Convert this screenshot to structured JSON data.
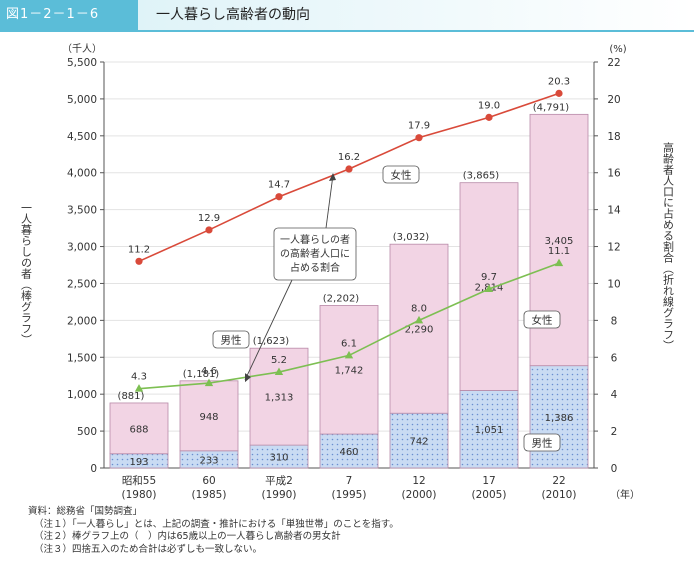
{
  "header": {
    "figure_label": "図1－2－1－6",
    "title": "一人暮らし高齢者の動向"
  },
  "chart_data": {
    "type": "bar",
    "left_unit": "（千人）",
    "right_unit": "(%)",
    "year_unit": "（年）",
    "ylabel_left": "一人暮らしの者（棒グラフ）",
    "ylabel_right": "高齢者人口に占める割合（折れ線グラフ）",
    "ylim_left": [
      0,
      5500
    ],
    "ylim_right": [
      0,
      22
    ],
    "left_ticks": [
      "0",
      "500",
      "1,000",
      "1,500",
      "2,000",
      "2,500",
      "3,000",
      "3,500",
      "4,000",
      "4,500",
      "5,000",
      "5,500"
    ],
    "right_ticks": [
      "0",
      "2",
      "4",
      "6",
      "8",
      "10",
      "12",
      "14",
      "16",
      "18",
      "20",
      "22"
    ],
    "categories": [
      {
        "era": "昭和55",
        "year": "(1980)"
      },
      {
        "era": "60",
        "year": "(1985)"
      },
      {
        "era": "平成2",
        "year": "(1990)"
      },
      {
        "era": "7",
        "year": "(1995)"
      },
      {
        "era": "12",
        "year": "(2000)"
      },
      {
        "era": "17",
        "year": "(2005)"
      },
      {
        "era": "22",
        "year": "(2010)"
      }
    ],
    "bar_series": [
      {
        "name": "男性",
        "values": [
          193,
          233,
          310,
          460,
          742,
          1051,
          1386
        ],
        "labels": [
          "193",
          "233",
          "310",
          "460",
          "742",
          "1,051",
          "1,386"
        ],
        "color": "#c9dbf3"
      },
      {
        "name": "女性",
        "values": [
          688,
          948,
          1313,
          1742,
          2290,
          2814,
          3405
        ],
        "labels": [
          "688",
          "948",
          "1,313",
          "1,742",
          "2,290",
          "2,814",
          "3,405"
        ],
        "color": "#f2d4e4"
      }
    ],
    "bar_totals": {
      "values": [
        881,
        1181,
        1623,
        2202,
        3032,
        3865,
        4791
      ],
      "labels": [
        "(881)",
        "(1,181)",
        "(1,623)",
        "(2,202)",
        "(3,032)",
        "(3,865)",
        "(4,791)"
      ]
    },
    "line_series": [
      {
        "name": "女性",
        "values": [
          11.2,
          12.9,
          14.7,
          16.2,
          17.9,
          19.0,
          20.3
        ],
        "labels": [
          "11.2",
          "12.9",
          "14.7",
          "16.2",
          "17.9",
          "19.0",
          "20.3"
        ],
        "color": "#d94a3a"
      },
      {
        "name": "男性",
        "values": [
          4.3,
          4.6,
          5.2,
          6.1,
          8.0,
          9.7,
          11.1
        ],
        "labels": [
          "4.3",
          "4.6",
          "5.2",
          "6.1",
          "8.0",
          "9.7",
          "11.1"
        ],
        "color": "#7dbf52"
      }
    ],
    "annotations": {
      "callout": "一人暮らしの者\nの高齢者人口に\n占める割合",
      "line_female_label": "女性",
      "line_male_label": "男性",
      "bar_female_label": "女性",
      "bar_male_label": "男性"
    }
  },
  "notes": {
    "source": "資料：総務省「国勢調査」",
    "note1": "（注１）「一人暮らし」とは、上記の調査・推計における「単独世帯」のことを指す。",
    "note2": "（注２）棒グラフ上の（　）内は65歳以上の一人暮らし高齢者の男女計",
    "note3": "（注３）四捨五入のため合計は必ずしも一致しない。"
  }
}
